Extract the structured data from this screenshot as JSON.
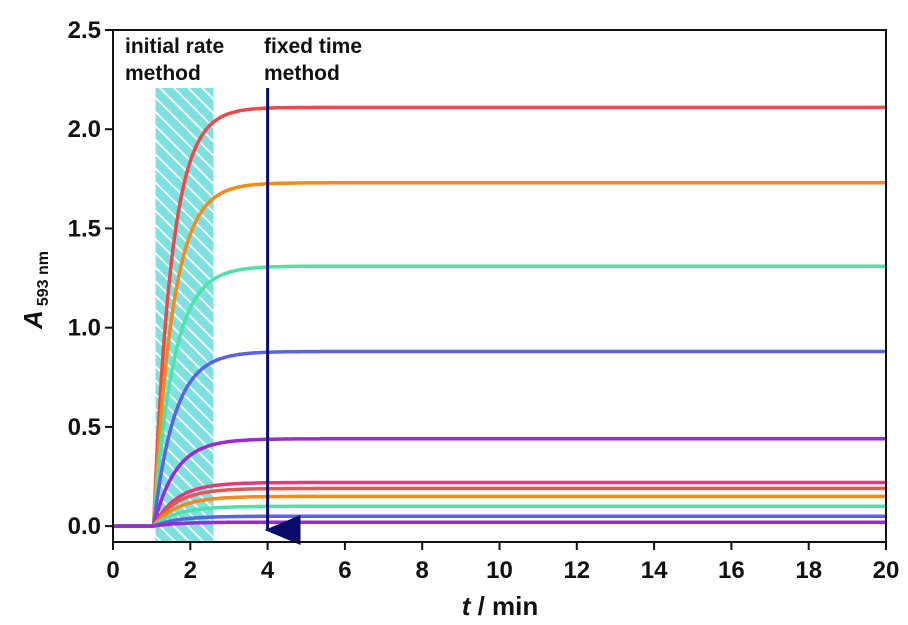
{
  "chart_data": {
    "type": "line",
    "xlabel": {
      "var": "t",
      "rest": " / min"
    },
    "ylabel": {
      "var": "A",
      "sub": "593 nm"
    },
    "xlim": [
      0,
      20
    ],
    "ylim": [
      -0.08,
      2.5
    ],
    "xticks": [
      0,
      2,
      4,
      6,
      8,
      10,
      12,
      14,
      16,
      18,
      20
    ],
    "yticks": [
      0.0,
      0.5,
      1.0,
      1.5,
      2.0,
      2.5
    ],
    "ytick_labels": [
      "0.0",
      "0.5",
      "1.0",
      "1.5",
      "2.0",
      "2.5"
    ],
    "grid": false,
    "onset_time": 1.05,
    "annotations": {
      "initial_rate": {
        "line1": "initial rate",
        "line2": "method",
        "band": [
          1.1,
          2.6
        ]
      },
      "fixed_time": {
        "line1": "fixed time",
        "line2": "method",
        "x": 4
      }
    },
    "series": [
      {
        "plateau": 2.11,
        "rate": 1.35,
        "color": "#e84b4b"
      },
      {
        "plateau": 1.73,
        "rate": 1.25,
        "color": "#f28a1c"
      },
      {
        "plateau": 1.31,
        "rate": 1.2,
        "color": "#4de3a8"
      },
      {
        "plateau": 0.88,
        "rate": 1.15,
        "color": "#5b63e3"
      },
      {
        "plateau": 0.44,
        "rate": 1.1,
        "color": "#9a2bd0"
      },
      {
        "plateau": 0.22,
        "rate": 1.05,
        "color": "#e33a7a"
      },
      {
        "plateau": 0.19,
        "rate": 1.05,
        "color": "#e05a55"
      },
      {
        "plateau": 0.15,
        "rate": 1.0,
        "color": "#f28a1c"
      },
      {
        "plateau": 0.1,
        "rate": 1.0,
        "color": "#4de3a8"
      },
      {
        "plateau": 0.05,
        "rate": 1.0,
        "color": "#5b63e3"
      },
      {
        "plateau": 0.02,
        "rate": 1.0,
        "color": "#9a2bd0"
      }
    ],
    "colors": {
      "band_fill": "#7fe0e0",
      "band_hatch": "#ffffff",
      "arrow": "#0a0a6a",
      "axis": "#111111"
    }
  }
}
